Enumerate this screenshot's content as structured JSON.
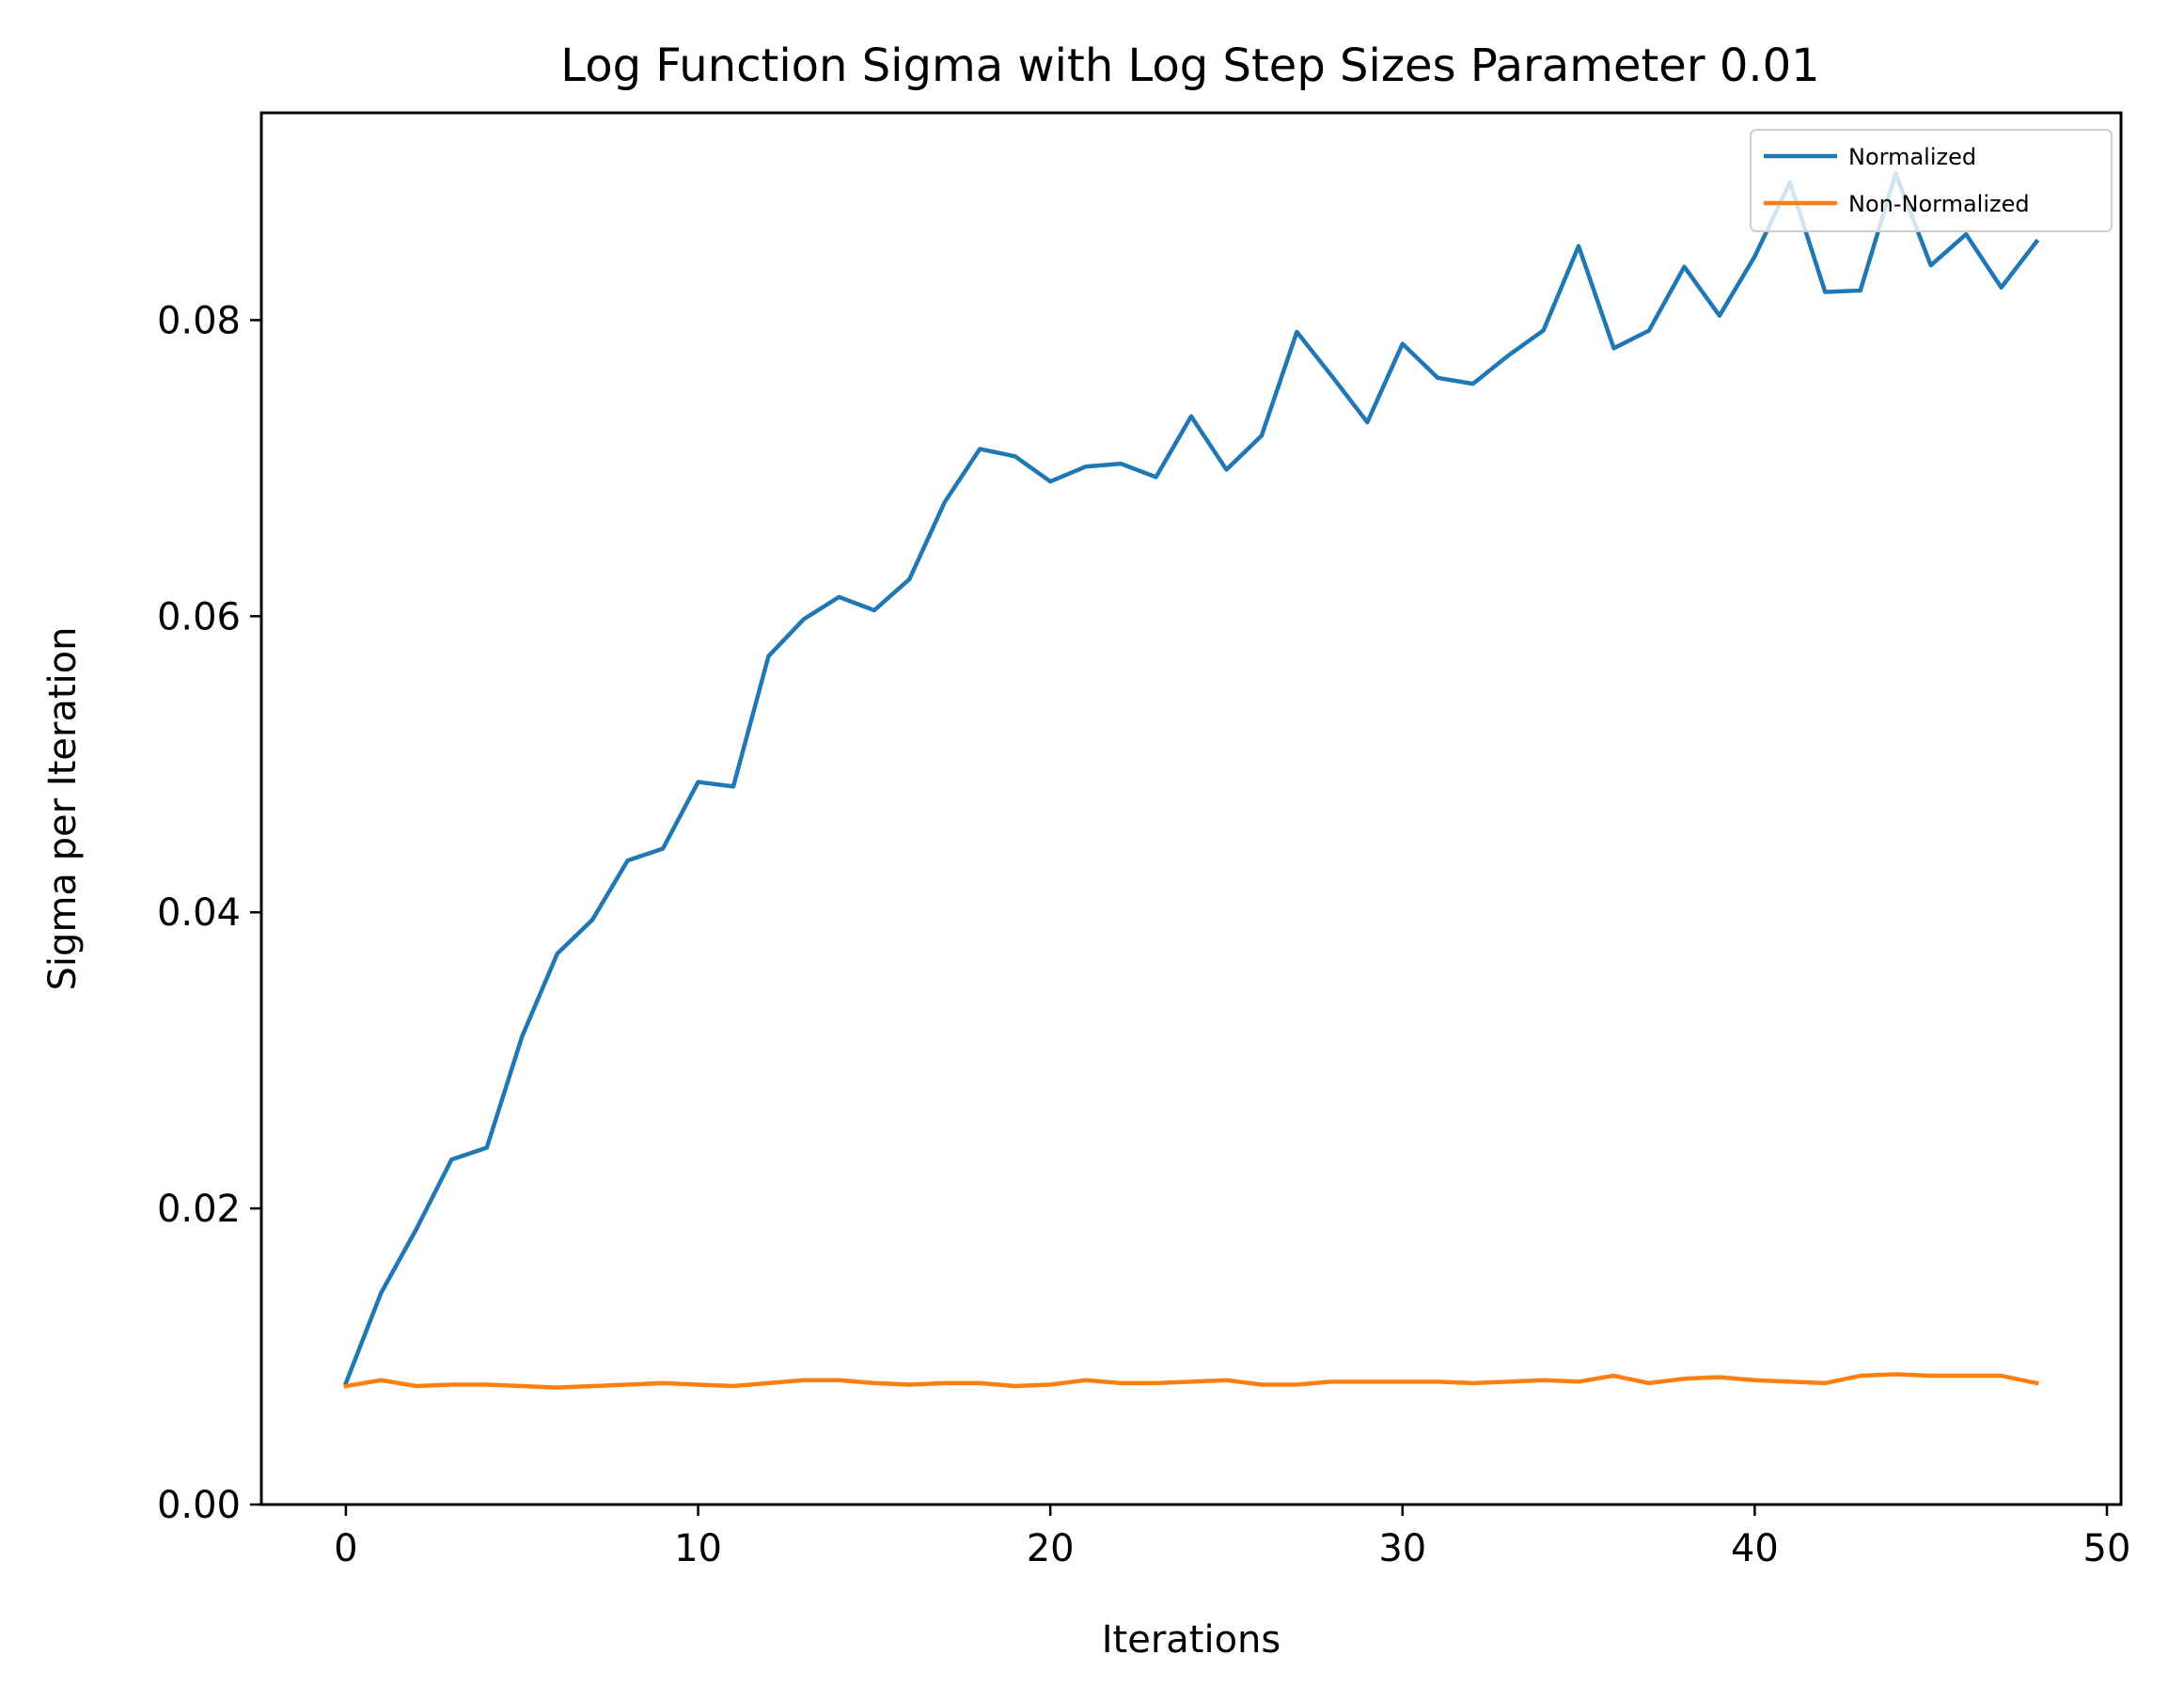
{
  "chart_data": {
    "type": "line",
    "title": "Log Function Sigma with Log Step Sizes Parameter 0.01",
    "xlabel": "Iterations",
    "ylabel": "Sigma per Iteration",
    "xlim": [
      -2.4,
      50.4
    ],
    "ylim": [
      0,
      0.094
    ],
    "xticks": [
      0,
      10,
      20,
      30,
      40,
      50
    ],
    "xtick_labels": [
      "0",
      "10",
      "20",
      "30",
      "40",
      "50"
    ],
    "yticks": [
      0.0,
      0.02,
      0.04,
      0.06,
      0.08
    ],
    "ytick_labels": [
      "0.00",
      "0.02",
      "0.04",
      "0.06",
      "0.08"
    ],
    "grid": false,
    "legend_position": "top-right",
    "x": [
      0,
      1,
      2,
      3,
      4,
      5,
      6,
      7,
      8,
      9,
      10,
      11,
      12,
      13,
      14,
      15,
      16,
      17,
      18,
      19,
      20,
      21,
      22,
      23,
      24,
      25,
      26,
      27,
      28,
      29,
      30,
      31,
      32,
      33,
      34,
      35,
      36,
      37,
      38,
      39,
      40,
      41,
      42,
      43,
      44,
      45,
      46,
      47,
      48
    ],
    "series": [
      {
        "name": "Normalized",
        "color": "#1f77b4",
        "values": [
          0.0082,
          0.0143,
          0.0186,
          0.0233,
          0.0241,
          0.0316,
          0.0372,
          0.0395,
          0.0435,
          0.0443,
          0.0488,
          0.0485,
          0.0573,
          0.0598,
          0.0613,
          0.0604,
          0.0625,
          0.0677,
          0.0713,
          0.0708,
          0.0691,
          0.0701,
          0.0703,
          0.0694,
          0.0735,
          0.0699,
          0.0722,
          0.0792,
          0.0762,
          0.0731,
          0.0784,
          0.0761,
          0.0757,
          0.0776,
          0.0793,
          0.085,
          0.0781,
          0.0793,
          0.0836,
          0.0803,
          0.0843,
          0.0893,
          0.0819,
          0.082,
          0.0899,
          0.0837,
          0.0858,
          0.0822,
          0.0853
        ]
      },
      {
        "name": "Non-Normalized",
        "color": "#ff7f0e",
        "values": [
          0.008,
          0.0084,
          0.008,
          0.0081,
          0.0081,
          0.008,
          0.0079,
          0.008,
          0.0081,
          0.0082,
          0.0081,
          0.008,
          0.0082,
          0.0084,
          0.0084,
          0.0082,
          0.0081,
          0.0082,
          0.0082,
          0.008,
          0.0081,
          0.0084,
          0.0082,
          0.0082,
          0.0083,
          0.0084,
          0.0081,
          0.0081,
          0.0083,
          0.0083,
          0.0083,
          0.0083,
          0.0082,
          0.0083,
          0.0084,
          0.0083,
          0.0087,
          0.0082,
          0.0085,
          0.0086,
          0.0084,
          0.0083,
          0.0082,
          0.0087,
          0.0088,
          0.0087,
          0.0087,
          0.0087,
          0.0082
        ]
      }
    ]
  }
}
